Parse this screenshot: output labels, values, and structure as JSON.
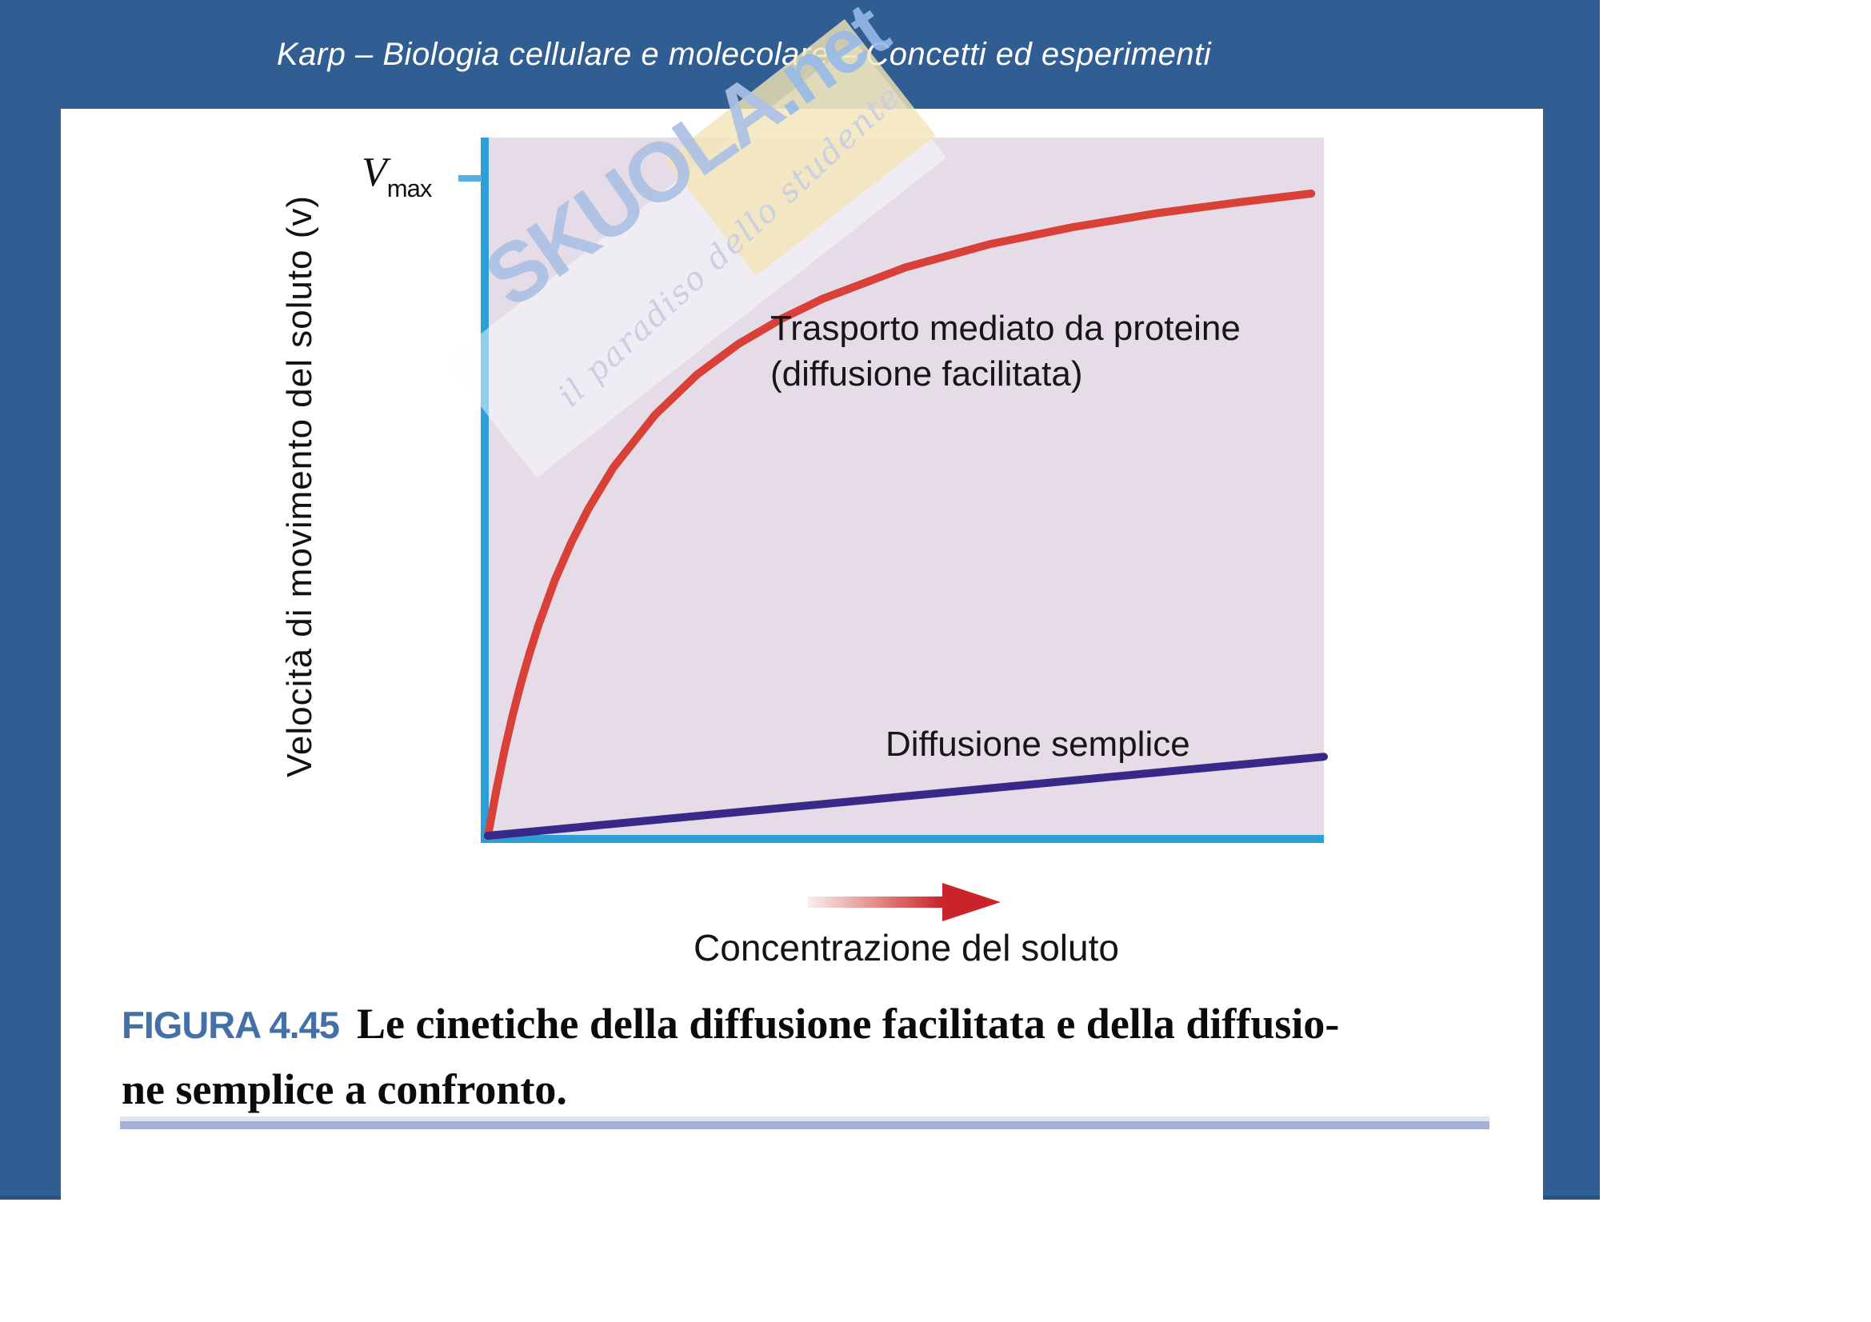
{
  "header": {
    "title": "Karp – Biologia cellulare e molecolare – Concetti ed esperimenti"
  },
  "figure": {
    "y_axis_label": "Velocità di movimento del soluto (v)",
    "y_tick_label_main": "V",
    "y_tick_label_sub": "max",
    "x_axis_label": "Concentrazione del soluto",
    "series1_label_line1": "Trasporto mediato da proteine",
    "series1_label_line2": "(diffusione facilitata)",
    "series2_label": "Diffusione semplice"
  },
  "caption": {
    "figure_number": "FIGURA 4.45",
    "line1": "Le cinetiche della diffusione facilitata e della diffusio-",
    "line2": "ne semplice a confronto."
  },
  "watermark": {
    "brand": "SKUOLA",
    "suffix": ".net",
    "tagline": "il paradiso dello studente"
  },
  "colors": {
    "frame_blue": "#305e92",
    "axis_cyan": "#2b9fd6",
    "facilitated_red": "#d84038",
    "simple_purple": "#382888",
    "figure_number_blue": "#4370a6",
    "plot_background": "#e5dce8",
    "caption_rule_lavender": "#a7b1d8",
    "arrow_red": "#c9232b"
  },
  "chart_data": {
    "type": "line",
    "title": "",
    "xlabel": "Concentrazione del soluto",
    "ylabel": "Velocità di movimento del soluto (v)",
    "x_range": [
      0,
      1
    ],
    "y_range": [
      0,
      1.06
    ],
    "y_axis_ticks": [
      {
        "label": "Vmax",
        "value": 1.0
      }
    ],
    "x_axis_ticks": [],
    "grid": false,
    "legend_position": "inline-annotations",
    "series": [
      {
        "name": "Trasporto mediato da proteine (diffusione facilitata)",
        "shape": "michaelis-menten saturation, asymptote slightly above Vmax tick",
        "color": "#d84038",
        "x": [
          0,
          0.01,
          0.02,
          0.03,
          0.04,
          0.05,
          0.06,
          0.08,
          0.1,
          0.12,
          0.15,
          0.2,
          0.25,
          0.3,
          0.35,
          0.4,
          0.5,
          0.6,
          0.7,
          0.8,
          0.9,
          0.985
        ],
        "y": [
          0,
          0.069,
          0.131,
          0.185,
          0.234,
          0.278,
          0.318,
          0.388,
          0.446,
          0.496,
          0.559,
          0.639,
          0.7,
          0.747,
          0.784,
          0.815,
          0.863,
          0.898,
          0.924,
          0.945,
          0.962,
          0.975
        ]
      },
      {
        "name": "Diffusione semplice",
        "shape": "linear",
        "color": "#382888",
        "x": [
          0,
          1.0
        ],
        "y": [
          0,
          0.12
        ]
      }
    ]
  }
}
